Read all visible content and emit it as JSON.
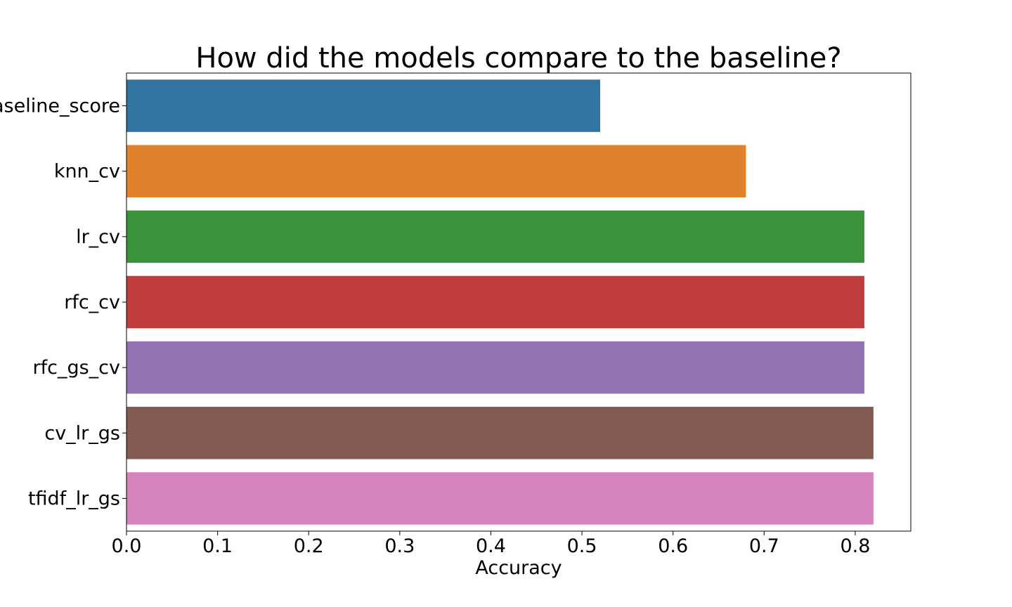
{
  "chart_data": {
    "type": "bar",
    "orientation": "horizontal",
    "title": "How did the models compare to the baseline?",
    "xlabel": "Accuracy",
    "ylabel": "",
    "categories": [
      "baseline_score",
      "knn_cv",
      "lr_cv",
      "rfc_cv",
      "rfc_gs_cv",
      "cv_lr_gs",
      "tfidf_lr_gs"
    ],
    "values": [
      0.52,
      0.68,
      0.81,
      0.81,
      0.81,
      0.82,
      0.82
    ],
    "colors": [
      "#3274a1",
      "#e1812c",
      "#3a923a",
      "#c03d3e",
      "#9372b2",
      "#845b53",
      "#d684bd"
    ],
    "xlim": [
      0.0,
      0.861
    ],
    "xticks": [
      0.0,
      0.1,
      0.2,
      0.3,
      0.4,
      0.5,
      0.6,
      0.7,
      0.8
    ],
    "xtick_labels": [
      "0.0",
      "0.1",
      "0.2",
      "0.3",
      "0.4",
      "0.5",
      "0.6",
      "0.7",
      "0.8"
    ],
    "grid": false,
    "legend": "none"
  }
}
